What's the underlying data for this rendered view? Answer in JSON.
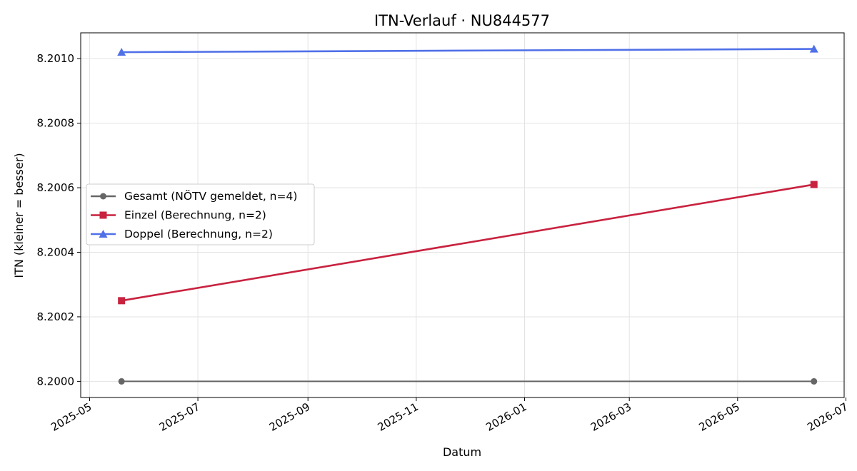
{
  "chart_data": {
    "type": "line",
    "title": "ITN-Verlauf · NU844577",
    "xlabel": "Datum",
    "ylabel": "ITN  (kleiner = besser)",
    "x_type": "date",
    "xlim": [
      "2025-04-26",
      "2026-06-30"
    ],
    "ylim": [
      8.19995,
      8.20108
    ],
    "x_ticks": [
      "2025-05-01",
      "2025-07-01",
      "2025-09-01",
      "2025-11-01",
      "2026-01-01",
      "2026-03-01",
      "2026-05-01",
      "2026-07-01"
    ],
    "x_tick_labels": [
      "2025-05",
      "2025-07",
      "2025-09",
      "2025-11",
      "2026-01",
      "2026-03",
      "2026-05",
      "2026-07"
    ],
    "y_ticks": [
      8.2,
      8.2002,
      8.2004,
      8.2006,
      8.2008,
      8.201
    ],
    "y_tick_labels": [
      "8.2000",
      "8.2002",
      "8.2004",
      "8.2006",
      "8.2008",
      "8.2010"
    ],
    "grid": true,
    "legend_position": "center-left",
    "series": [
      {
        "name": "Gesamt (NÖTV gemeldet, n=4)",
        "color": "#666666",
        "marker": "circle",
        "points": [
          {
            "x": "2025-05-19",
            "y": 8.2
          },
          {
            "x": "2026-06-13",
            "y": 8.2
          }
        ]
      },
      {
        "name": "Einzel (Berechnung, n=2)",
        "color": "#c8223f",
        "marker": "square",
        "points": [
          {
            "x": "2025-05-19",
            "y": 8.20025
          },
          {
            "x": "2026-06-13",
            "y": 8.20061
          }
        ]
      },
      {
        "name": "Doppel (Berechnung, n=2)",
        "color": "#5070e8",
        "marker": "triangle",
        "points": [
          {
            "x": "2025-05-19",
            "y": 8.20102
          },
          {
            "x": "2026-06-13",
            "y": 8.20103
          }
        ]
      }
    ]
  }
}
